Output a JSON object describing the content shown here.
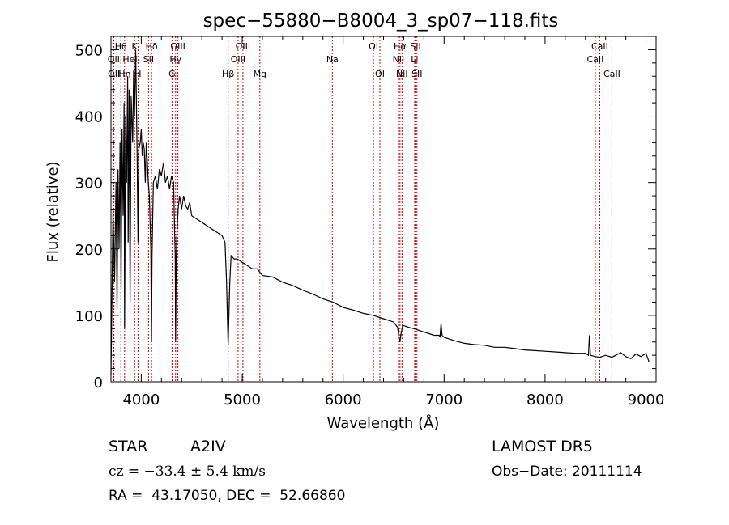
{
  "chart_data": {
    "type": "line",
    "title": "spec−55880−B8004_3_sp07−118.fits",
    "xlabel": "Wavelength (Å)",
    "ylabel": "Flux (relative)",
    "xlim": [
      3700,
      9100
    ],
    "ylim": [
      0,
      520
    ],
    "x_ticks": [
      4000,
      5000,
      6000,
      7000,
      8000,
      9000
    ],
    "y_ticks": [
      0,
      100,
      200,
      300,
      400,
      500
    ],
    "grid": false,
    "legend": "none",
    "series": [
      {
        "color": "#000000",
        "points": [
          [
            3700,
            10
          ],
          [
            3720,
            260
          ],
          [
            3735,
            150
          ],
          [
            3750,
            300
          ],
          [
            3760,
            110
          ],
          [
            3770,
            320
          ],
          [
            3780,
            200
          ],
          [
            3790,
            360
          ],
          [
            3800,
            140
          ],
          [
            3810,
            380
          ],
          [
            3820,
            250
          ],
          [
            3830,
            420
          ],
          [
            3835,
            80
          ],
          [
            3845,
            400
          ],
          [
            3855,
            300
          ],
          [
            3865,
            460
          ],
          [
            3870,
            210
          ],
          [
            3880,
            440
          ],
          [
            3889,
            120
          ],
          [
            3900,
            430
          ],
          [
            3915,
            360
          ],
          [
            3925,
            470
          ],
          [
            3933,
            400
          ],
          [
            3945,
            500
          ],
          [
            3960,
            330
          ],
          [
            3968,
            210
          ],
          [
            3975,
            350
          ],
          [
            3990,
            360
          ],
          [
            4000,
            380
          ],
          [
            4010,
            340
          ],
          [
            4020,
            360
          ],
          [
            4030,
            350
          ],
          [
            4040,
            300
          ],
          [
            4050,
            360
          ],
          [
            4060,
            330
          ],
          [
            4070,
            300
          ],
          [
            4080,
            280
          ],
          [
            4095,
            200
          ],
          [
            4101,
            60
          ],
          [
            4107,
            190
          ],
          [
            4120,
            300
          ],
          [
            4140,
            310
          ],
          [
            4160,
            290
          ],
          [
            4180,
            320
          ],
          [
            4200,
            310
          ],
          [
            4220,
            330
          ],
          [
            4240,
            300
          ],
          [
            4260,
            310
          ],
          [
            4280,
            290
          ],
          [
            4300,
            310
          ],
          [
            4320,
            300
          ],
          [
            4330,
            230
          ],
          [
            4336,
            190
          ],
          [
            4340,
            60
          ],
          [
            4346,
            180
          ],
          [
            4352,
            220
          ],
          [
            4365,
            260
          ],
          [
            4380,
            280
          ],
          [
            4400,
            260
          ],
          [
            4420,
            280
          ],
          [
            4440,
            265
          ],
          [
            4460,
            260
          ],
          [
            4480,
            270
          ],
          [
            4500,
            250
          ],
          [
            4550,
            245
          ],
          [
            4600,
            240
          ],
          [
            4650,
            235
          ],
          [
            4700,
            230
          ],
          [
            4750,
            225
          ],
          [
            4800,
            220
          ],
          [
            4830,
            210
          ],
          [
            4845,
            150
          ],
          [
            4855,
            90
          ],
          [
            4861,
            55
          ],
          [
            4867,
            90
          ],
          [
            4877,
            150
          ],
          [
            4890,
            190
          ],
          [
            4920,
            185
          ],
          [
            4950,
            185
          ],
          [
            5000,
            180
          ],
          [
            5050,
            175
          ],
          [
            5100,
            170
          ],
          [
            5150,
            170
          ],
          [
            5200,
            160
          ],
          [
            5300,
            158
          ],
          [
            5400,
            150
          ],
          [
            5500,
            145
          ],
          [
            5600,
            138
          ],
          [
            5700,
            132
          ],
          [
            5800,
            125
          ],
          [
            5900,
            120
          ],
          [
            6000,
            112
          ],
          [
            6100,
            108
          ],
          [
            6200,
            103
          ],
          [
            6300,
            100
          ],
          [
            6400,
            95
          ],
          [
            6500,
            90
          ],
          [
            6540,
            82
          ],
          [
            6555,
            65
          ],
          [
            6563,
            60
          ],
          [
            6571,
            70
          ],
          [
            6590,
            85
          ],
          [
            6650,
            82
          ],
          [
            6700,
            80
          ],
          [
            6800,
            75
          ],
          [
            6900,
            70
          ],
          [
            6950,
            70
          ],
          [
            6960,
            68
          ],
          [
            6970,
            88
          ],
          [
            6980,
            70
          ],
          [
            7000,
            67
          ],
          [
            7100,
            62
          ],
          [
            7200,
            58
          ],
          [
            7300,
            56
          ],
          [
            7400,
            55
          ],
          [
            7500,
            52
          ],
          [
            7600,
            52
          ],
          [
            7700,
            50
          ],
          [
            7800,
            48
          ],
          [
            7900,
            47
          ],
          [
            8000,
            46
          ],
          [
            8100,
            45
          ],
          [
            8200,
            44
          ],
          [
            8300,
            43
          ],
          [
            8400,
            43
          ],
          [
            8430,
            40
          ],
          [
            8440,
            70
          ],
          [
            8450,
            40
          ],
          [
            8500,
            38
          ],
          [
            8542,
            37
          ],
          [
            8600,
            40
          ],
          [
            8662,
            37
          ],
          [
            8700,
            40
          ],
          [
            8750,
            44
          ],
          [
            8800,
            38
          ],
          [
            8850,
            35
          ],
          [
            8900,
            42
          ],
          [
            8950,
            38
          ],
          [
            9000,
            43
          ],
          [
            9030,
            30
          ]
        ]
      }
    ],
    "annotations": [
      {
        "label": "Hθ",
        "x": 3798,
        "row": 1
      },
      {
        "label": "K",
        "x": 3934,
        "row": 1
      },
      {
        "label": "Hδ",
        "x": 4102,
        "row": 1
      },
      {
        "label": "OIII",
        "x": 4363,
        "row": 1
      },
      {
        "label": "OIII",
        "x": 5007,
        "row": 1
      },
      {
        "label": "OI",
        "x": 6300,
        "row": 1
      },
      {
        "label": "Hα",
        "x": 6563,
        "row": 1
      },
      {
        "label": "SII",
        "x": 6717,
        "row": 1
      },
      {
        "label": "CaII",
        "x": 8542,
        "row": 1
      },
      {
        "label": "OII",
        "x": 3727,
        "row": 2
      },
      {
        "label": "HeI",
        "x": 3889,
        "row": 2
      },
      {
        "label": "SII",
        "x": 4072,
        "row": 2
      },
      {
        "label": "Hγ",
        "x": 4340,
        "row": 2
      },
      {
        "label": "OIII",
        "x": 4959,
        "row": 2
      },
      {
        "label": "Na",
        "x": 5893,
        "row": 2
      },
      {
        "label": "NII",
        "x": 6548,
        "row": 2
      },
      {
        "label": "Li",
        "x": 6708,
        "row": 2
      },
      {
        "label": "CaII",
        "x": 8498,
        "row": 2
      },
      {
        "label": "OII",
        "x": 3729,
        "row": 3
      },
      {
        "label": "Hη",
        "x": 3835,
        "row": 3
      },
      {
        "label": "H",
        "x": 3968,
        "row": 3
      },
      {
        "label": "G",
        "x": 4305,
        "row": 3
      },
      {
        "label": "Hβ",
        "x": 4861,
        "row": 3
      },
      {
        "label": "Mg",
        "x": 5175,
        "row": 3
      },
      {
        "label": "OI",
        "x": 6364,
        "row": 3
      },
      {
        "label": "NII",
        "x": 6583,
        "row": 3
      },
      {
        "label": "SII",
        "x": 6731,
        "row": 3
      },
      {
        "label": "CaII",
        "x": 8662,
        "row": 3
      }
    ],
    "line_color": "#cc0000"
  },
  "info": {
    "object_type": "STAR",
    "subclass": "A2IV",
    "survey": "LAMOST DR5",
    "cz": "cz = −33.4 ± 5.4 km/s",
    "obs_date": "Obs−Date: 20111114",
    "coords": "RA =  43.17050, DEC =  52.66860"
  }
}
